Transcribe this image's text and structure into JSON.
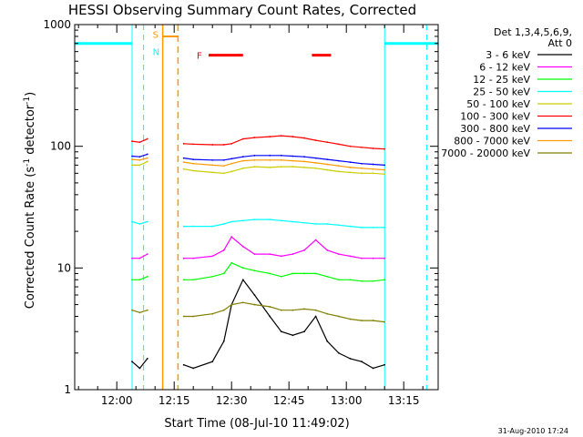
{
  "chart_data": {
    "type": "line",
    "title": "HESSI Observing Summary Count Rates, Corrected",
    "xlabel": "Start Time (08-Jul-10 11:49:02)",
    "ylabel": "Corrected Count Rate (s⁻¹ detector⁻¹)",
    "ylabel_main": "Corrected Count Rate (s",
    "ylabel_sup1": "-1",
    "ylabel_mid": " detector",
    "ylabel_sup2": "-1",
    "ylabel_end": ")",
    "yscale": "log",
    "ylim": [
      1,
      1000
    ],
    "xlim_minutes": [
      -11,
      84
    ],
    "xticks": [
      {
        "label": "12:00",
        "minute": 0
      },
      {
        "label": "12:15",
        "minute": 15
      },
      {
        "label": "12:30",
        "minute": 30
      },
      {
        "label": "12:45",
        "minute": 45
      },
      {
        "label": "13:00",
        "minute": 60
      },
      {
        "label": "13:15",
        "minute": 75
      }
    ],
    "yticks": [
      {
        "label": "1",
        "value": 1
      },
      {
        "label": "10",
        "value": 10
      },
      {
        "label": "100",
        "value": 100
      },
      {
        "label": "1000",
        "value": 1000
      }
    ],
    "legend_header": [
      "Det 1,3,4,5,6,9,",
      "Att 0"
    ],
    "data_gaps_minutes": [
      [
        8,
        17.5
      ]
    ],
    "series": [
      {
        "name": "3 - 6 keV",
        "color": "#000000",
        "x": [
          4,
          6,
          8,
          17.5,
          20,
          25,
          28,
          30,
          33,
          36,
          40,
          43,
          46,
          49,
          52,
          55,
          58,
          61,
          64,
          67,
          70
        ],
        "y": [
          1.7,
          1.5,
          1.8,
          1.6,
          1.5,
          1.7,
          2.5,
          5,
          8,
          6,
          4,
          3,
          2.8,
          3,
          4,
          2.5,
          2,
          1.8,
          1.7,
          1.5,
          1.6
        ]
      },
      {
        "name": "6 - 12 keV",
        "color": "#ff00ff",
        "x": [
          4,
          6,
          8,
          17.5,
          20,
          25,
          28,
          30,
          33,
          36,
          40,
          43,
          46,
          49,
          52,
          55,
          58,
          61,
          64,
          67,
          70
        ],
        "y": [
          12,
          12,
          13,
          12,
          12,
          12.5,
          14,
          18,
          15,
          13,
          13,
          12.5,
          13,
          14,
          17,
          14,
          13,
          12.5,
          12,
          12,
          12
        ]
      },
      {
        "name": "12 - 25 keV",
        "color": "#00ff00",
        "x": [
          4,
          6,
          8,
          17.5,
          20,
          25,
          28,
          30,
          33,
          36,
          40,
          43,
          46,
          49,
          52,
          55,
          58,
          61,
          64,
          67,
          70
        ],
        "y": [
          8,
          8,
          8.5,
          8,
          8,
          8.5,
          9,
          11,
          10,
          9.5,
          9,
          8.5,
          9,
          9,
          9,
          8.5,
          8,
          8,
          7.8,
          7.8,
          8
        ]
      },
      {
        "name": "25 - 50 keV",
        "color": "#00ffff",
        "x": [
          4,
          6,
          8,
          17.5,
          20,
          25,
          28,
          30,
          33,
          36,
          40,
          43,
          46,
          49,
          52,
          55,
          58,
          61,
          64,
          67,
          70
        ],
        "y": [
          24,
          23,
          24,
          22,
          22,
          22,
          23,
          24,
          24.5,
          25,
          25,
          24.5,
          24,
          23.5,
          23,
          23,
          22.5,
          22,
          21.5,
          21.5,
          21.5
        ]
      },
      {
        "name": "50 - 100 keV",
        "color": "#cccc00",
        "x": [
          4,
          6,
          8,
          17.5,
          20,
          25,
          28,
          30,
          33,
          36,
          40,
          43,
          46,
          49,
          52,
          55,
          58,
          61,
          64,
          67,
          70
        ],
        "y": [
          70,
          70,
          75,
          65,
          63,
          61,
          60,
          62,
          66,
          68,
          67,
          68,
          68,
          67,
          66,
          64,
          62,
          61,
          60,
          60,
          59
        ]
      },
      {
        "name": "100 - 300 keV",
        "color": "#ff0000",
        "x": [
          4,
          6,
          8,
          10,
          17.5,
          20,
          25,
          28,
          30,
          33,
          36,
          40,
          43,
          46,
          49,
          52,
          55,
          58,
          61,
          64,
          67,
          70
        ],
        "y": [
          110,
          108,
          115,
          175,
          105,
          104,
          103,
          103,
          105,
          115,
          118,
          120,
          122,
          120,
          117,
          112,
          108,
          104,
          100,
          98,
          96,
          95
        ]
      },
      {
        "name": "300 - 800 keV",
        "color": "#0000ff",
        "x": [
          4,
          6,
          8,
          17.5,
          20,
          25,
          28,
          30,
          33,
          36,
          40,
          43,
          46,
          49,
          52,
          55,
          58,
          61,
          64,
          67,
          70
        ],
        "y": [
          83,
          82,
          86,
          80,
          78,
          77,
          77,
          79,
          82,
          84,
          84,
          84,
          83,
          82,
          80,
          78,
          76,
          74,
          72,
          71,
          70
        ]
      },
      {
        "name": "800 - 7000 keV",
        "color": "#ff9900",
        "x": [
          4,
          6,
          8,
          17.5,
          20,
          25,
          28,
          30,
          33,
          36,
          40,
          43,
          46,
          49,
          52,
          55,
          58,
          61,
          64,
          67,
          70
        ],
        "y": [
          78,
          77,
          80,
          74,
          72,
          70,
          69,
          72,
          76,
          77,
          77,
          77,
          76,
          75,
          73,
          71,
          69,
          67,
          66,
          65,
          64
        ]
      },
      {
        "name": "7000 - 20000 keV",
        "color": "#808000",
        "x": [
          4,
          6,
          8,
          17.5,
          20,
          25,
          28,
          30,
          33,
          36,
          40,
          43,
          46,
          49,
          52,
          55,
          58,
          61,
          64,
          67,
          70
        ],
        "y": [
          4.5,
          4.3,
          4.5,
          4,
          4,
          4.2,
          4.5,
          5,
          5.2,
          5,
          4.8,
          4.5,
          4.5,
          4.6,
          4.5,
          4.2,
          4,
          3.8,
          3.7,
          3.7,
          3.6
        ]
      }
    ],
    "annotations": {
      "flare_flag": {
        "label": "F",
        "color": "#ff0000",
        "segments_minutes": [
          [
            24,
            33
          ],
          [
            51,
            56
          ]
        ]
      },
      "saa_flag": {
        "label": "S",
        "color": "#ff9900",
        "minute_start": 12,
        "minute_end": 16
      },
      "night_flag": {
        "label": "N",
        "color": "#00ffff"
      },
      "night_bars_minutes": [
        [
          -11,
          4
        ],
        [
          70,
          84
        ]
      ],
      "saa_boundaries_minutes": [
        12,
        16
      ],
      "night_boundaries_minutes": [
        7,
        81
      ]
    },
    "footer_timestamp": "31-Aug-2010 17:24"
  }
}
